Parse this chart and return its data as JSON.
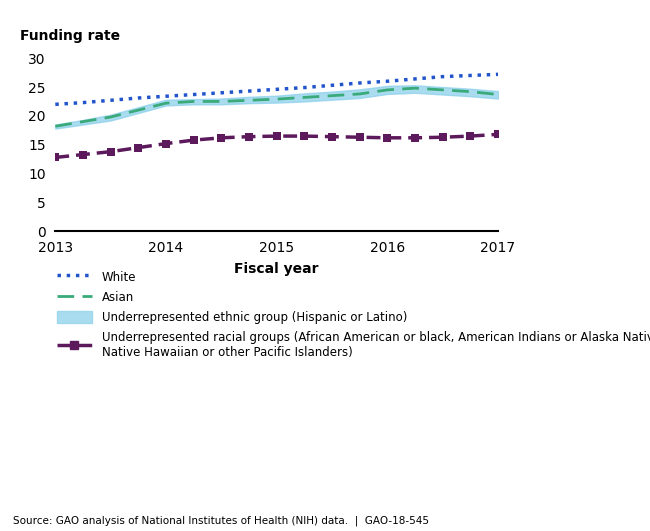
{
  "years": [
    2013,
    2013.25,
    2013.5,
    2013.75,
    2014,
    2014.25,
    2014.5,
    2014.75,
    2015,
    2015.25,
    2015.5,
    2015.75,
    2016,
    2016.25,
    2016.5,
    2016.75,
    2017
  ],
  "white": [
    22.0,
    22.3,
    22.7,
    23.1,
    23.4,
    23.7,
    24.0,
    24.3,
    24.6,
    24.9,
    25.3,
    25.7,
    26.0,
    26.4,
    26.8,
    27.0,
    27.2
  ],
  "asian": [
    18.2,
    19.0,
    19.8,
    21.0,
    22.2,
    22.5,
    22.5,
    22.7,
    22.9,
    23.2,
    23.5,
    23.8,
    24.5,
    24.8,
    24.5,
    24.2,
    23.7
  ],
  "hispanic_low": [
    17.8,
    18.5,
    19.2,
    20.5,
    21.8,
    22.0,
    22.0,
    22.2,
    22.3,
    22.5,
    22.8,
    23.1,
    23.8,
    24.0,
    23.7,
    23.4,
    23.0
  ],
  "hispanic_high": [
    18.5,
    19.3,
    20.2,
    21.5,
    22.8,
    22.9,
    23.0,
    23.3,
    23.5,
    23.9,
    24.2,
    24.6,
    25.2,
    25.3,
    25.0,
    24.7,
    24.3
  ],
  "racial": [
    12.8,
    13.3,
    13.8,
    14.5,
    15.2,
    15.8,
    16.2,
    16.4,
    16.5,
    16.5,
    16.4,
    16.3,
    16.2,
    16.2,
    16.3,
    16.5,
    16.8
  ],
  "white_color": "#2255cc",
  "asian_color": "#3aaa7a",
  "hispanic_color": "#87ceeb",
  "racial_color": "#5c1a5c",
  "title": "Funding rate",
  "xlabel": "Fiscal year",
  "ylabel": "Funding rate",
  "ylim": [
    0,
    32
  ],
  "yticks": [
    0,
    5,
    10,
    15,
    20,
    25,
    30
  ],
  "source_text": "Source: GAO analysis of National Institutes of Health (NIH) data.  |  GAO-18-545",
  "legend_white": "White",
  "legend_asian": "Asian",
  "legend_hispanic": "Underrepresented ethnic group (Hispanic or Latino)",
  "legend_racial": "Underrepresented racial groups (African American or black, American Indians or Alaska Natives, and\nNative Hawaiian or other Pacific Islanders)"
}
